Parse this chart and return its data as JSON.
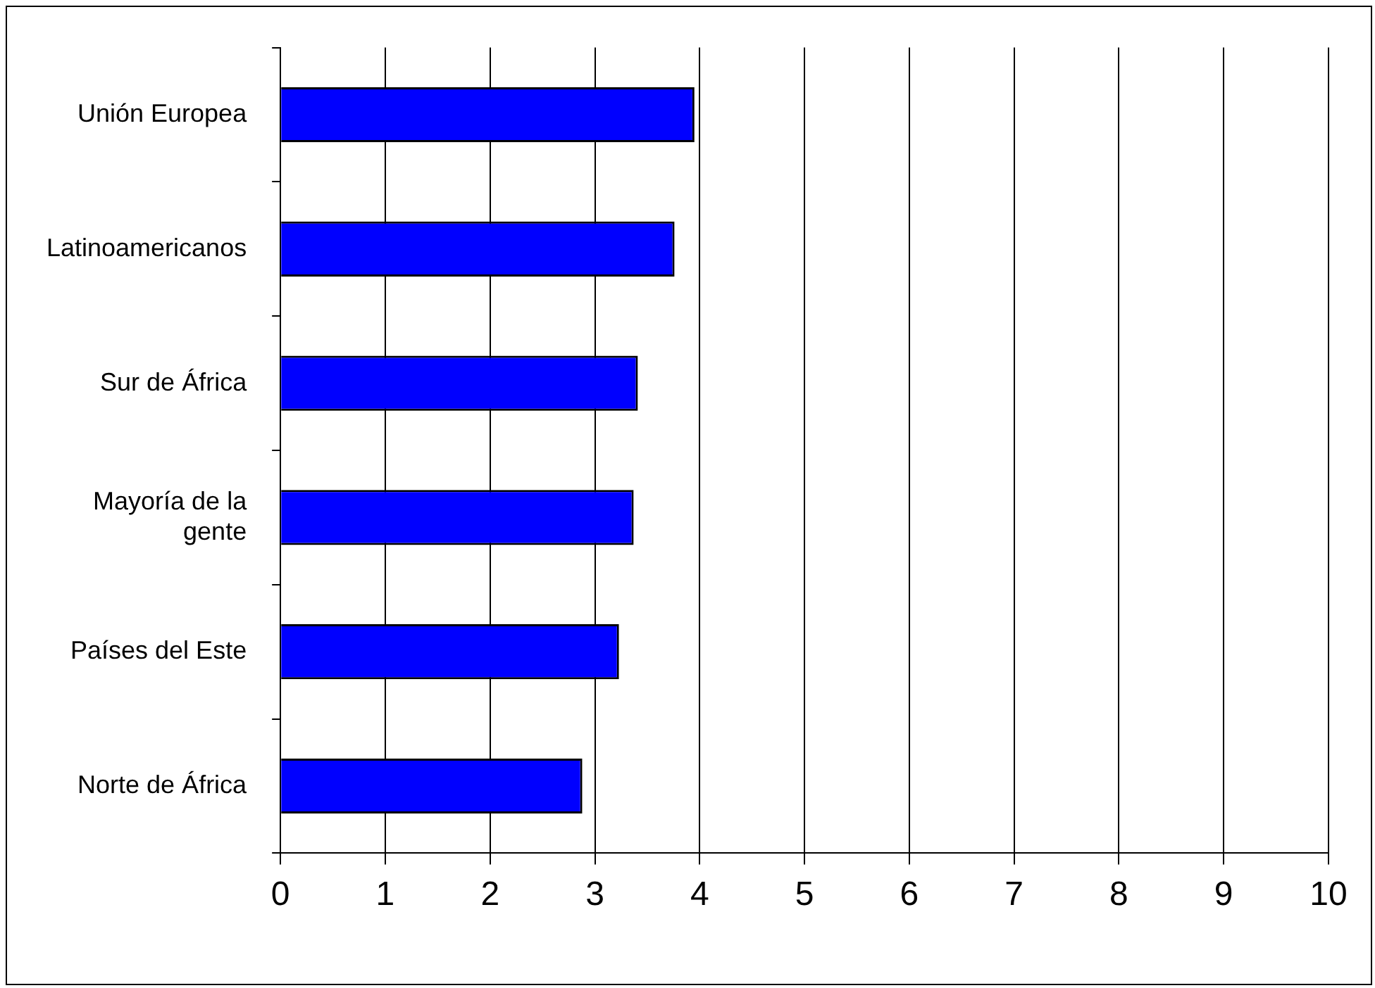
{
  "chart_data": {
    "type": "bar",
    "orientation": "horizontal",
    "categories": [
      "Unión Europea",
      "Latinoamericanos",
      "Sur de África",
      "Mayoría de la gente",
      "Países del Este",
      "Norte de África"
    ],
    "values": [
      3.95,
      3.76,
      3.41,
      3.37,
      3.23,
      2.88
    ],
    "color": "#0000ff",
    "xlim": [
      0,
      10
    ],
    "xticks": [
      0,
      1,
      2,
      3,
      4,
      5,
      6,
      7,
      8,
      9,
      10
    ],
    "grid": "x",
    "legend": false
  }
}
